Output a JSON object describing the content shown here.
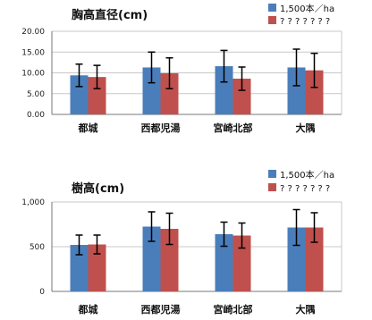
{
  "chart_data": [
    {
      "type": "bar",
      "title": "胸高直径(cm)",
      "categories": [
        "都城",
        "西都児湯",
        "宮崎北部",
        "大隅"
      ],
      "ylim": [
        0,
        20
      ],
      "yticks": [
        "20.00",
        "15.00",
        "10.00",
        "5.00",
        "0.00"
      ],
      "grid": true,
      "legend": "top-right",
      "series": [
        {
          "name": "1,500本／ha",
          "color": "#4a7ebb",
          "values": [
            9.4,
            11.3,
            11.6,
            11.3
          ],
          "error": [
            2.7,
            3.7,
            3.8,
            4.4
          ]
        },
        {
          "name": "? ? ? ? ? ? ?",
          "color": "#c0504d",
          "values": [
            9.0,
            9.9,
            8.6,
            10.6
          ],
          "error": [
            2.8,
            3.7,
            2.8,
            4.1
          ]
        }
      ]
    },
    {
      "type": "bar",
      "title": "樹高(cm)",
      "categories": [
        "都城",
        "西都児湯",
        "宮崎北部",
        "大隅"
      ],
      "ylim": [
        0,
        1000
      ],
      "yticks": [
        "1,000",
        "500",
        "0"
      ],
      "grid": true,
      "legend": "top-right",
      "series": [
        {
          "name": "1,500本／ha",
          "color": "#4a7ebb",
          "values": [
            520,
            725,
            640,
            715
          ],
          "error": [
            110,
            165,
            135,
            200
          ]
        },
        {
          "name": "? ? ? ? ? ? ?",
          "color": "#c0504d",
          "values": [
            525,
            700,
            625,
            715
          ],
          "error": [
            105,
            175,
            140,
            165
          ]
        }
      ]
    }
  ]
}
